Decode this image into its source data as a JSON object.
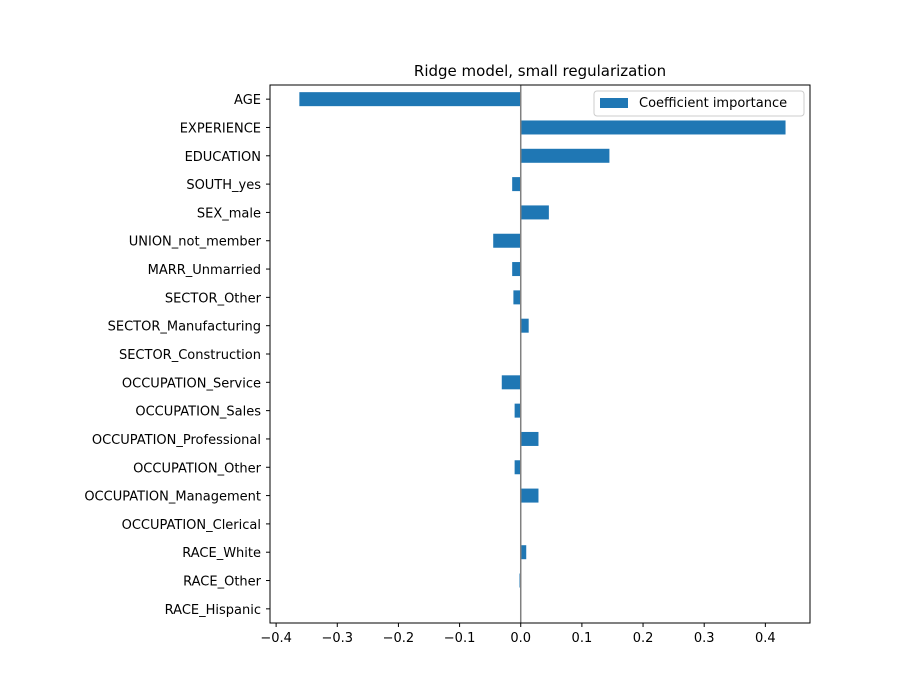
{
  "chart_data": {
    "type": "bar",
    "orientation": "horizontal",
    "title": "Ridge model, small regularization",
    "xlabel": "",
    "ylabel": "",
    "categories": [
      "AGE",
      "EXPERIENCE",
      "EDUCATION",
      "SOUTH_yes",
      "SEX_male",
      "UNION_not_member",
      "MARR_Unmarried",
      "SECTOR_Other",
      "SECTOR_Manufacturing",
      "SECTOR_Construction",
      "OCCUPATION_Service",
      "OCCUPATION_Sales",
      "OCCUPATION_Professional",
      "OCCUPATION_Other",
      "OCCUPATION_Management",
      "OCCUPATION_Clerical",
      "RACE_White",
      "RACE_Other",
      "RACE_Hispanic"
    ],
    "series": [
      {
        "name": "Coefficient importance",
        "values": [
          -0.362,
          0.433,
          0.145,
          -0.014,
          0.046,
          -0.045,
          -0.014,
          -0.012,
          0.013,
          0.0,
          -0.031,
          -0.01,
          0.029,
          -0.01,
          0.029,
          0.0,
          0.009,
          -0.002,
          0.0
        ]
      }
    ],
    "xlim": [
      -0.41,
      0.473
    ],
    "xticks": [
      -0.4,
      -0.3,
      -0.2,
      -0.1,
      0.0,
      0.1,
      0.2,
      0.3,
      0.4
    ],
    "xtick_labels": [
      "−0.4",
      "−0.3",
      "−0.2",
      "−0.1",
      "0.0",
      "0.1",
      "0.2",
      "0.3",
      "0.4"
    ],
    "reference_line_x": 0.0,
    "grid": false,
    "legend_position": "upper right",
    "colors": {
      "bar": "#1f77b4",
      "zero_line": "#808080",
      "axes": "#000000"
    }
  }
}
